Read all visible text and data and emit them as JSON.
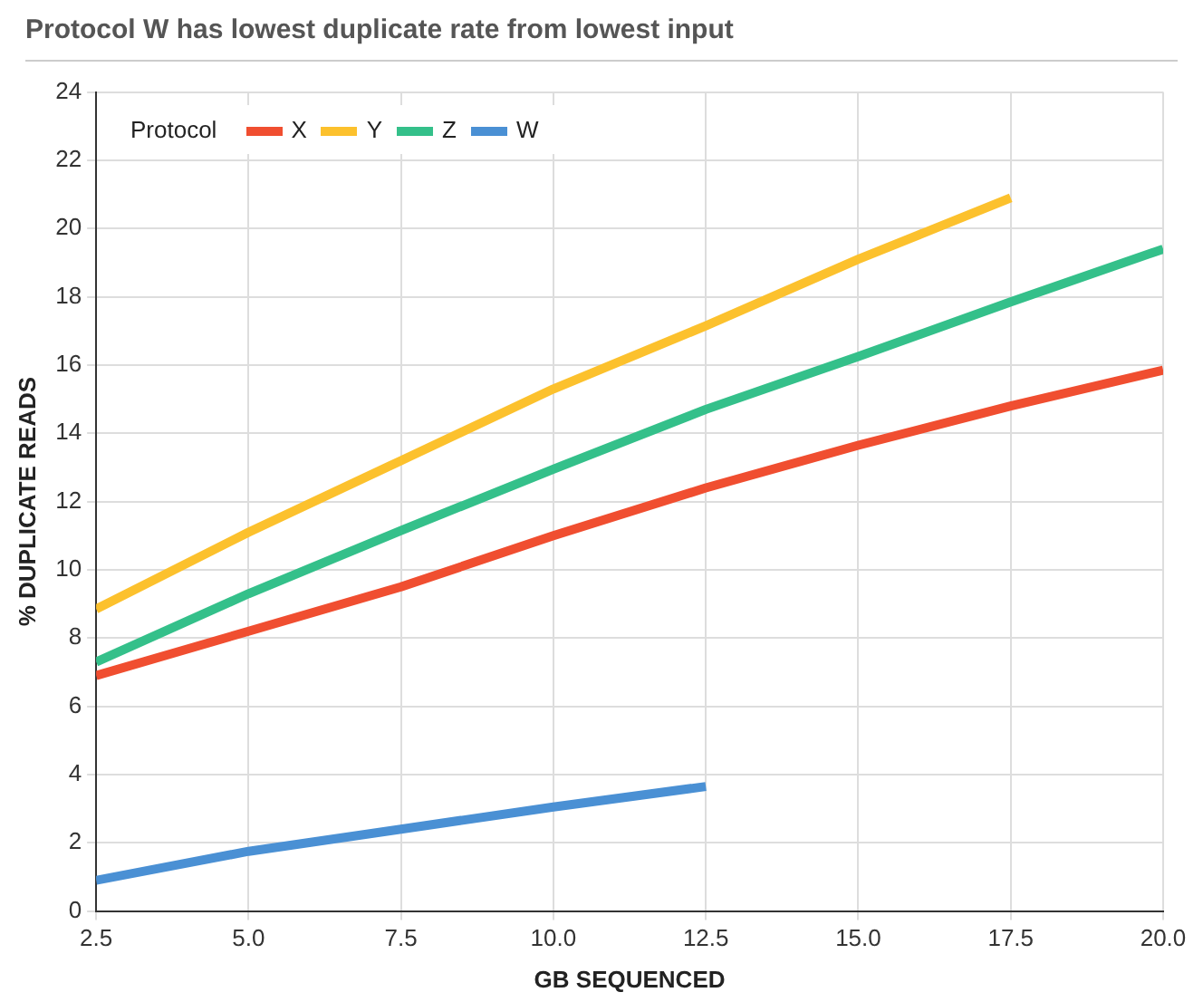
{
  "chart_data": {
    "type": "line",
    "title": "Protocol W has lowest duplicate rate from lowest input",
    "xlabel": "GB SEQUENCED",
    "ylabel": "% DUPLICATE READS",
    "legend_title": "Protocol",
    "x": [
      2.5,
      5,
      7.5,
      10,
      12.5,
      15,
      17.5,
      20
    ],
    "series": [
      {
        "name": "X",
        "color": "#f04e30",
        "values": [
          6.9,
          8.2,
          9.5,
          11.0,
          12.4,
          13.65,
          14.8,
          15.85
        ]
      },
      {
        "name": "Y",
        "color": "#fcc12d",
        "values": [
          8.85,
          11.1,
          13.2,
          15.3,
          17.15,
          19.1,
          20.9,
          null
        ]
      },
      {
        "name": "Z",
        "color": "#34c08a",
        "values": [
          7.3,
          9.3,
          11.15,
          12.95,
          14.7,
          16.25,
          17.85,
          19.4
        ]
      },
      {
        "name": "W",
        "color": "#4a90d4",
        "values": [
          0.9,
          1.75,
          2.4,
          3.05,
          3.65,
          null,
          null,
          null
        ]
      }
    ],
    "xlim": [
      2.5,
      20
    ],
    "xticks": [
      2.5,
      {
        "value": 5,
        "label": "5.0"
      },
      7.5,
      {
        "value": 10,
        "label": "10.0"
      },
      12.5,
      {
        "value": 15,
        "label": "15.0"
      },
      17.5,
      {
        "value": 20,
        "label": "20.0"
      }
    ],
    "ylim": [
      0,
      24
    ],
    "yticks": [
      0,
      2,
      4,
      6,
      8,
      10,
      12,
      14,
      16,
      18,
      20,
      22,
      24
    ],
    "grid": true,
    "legend": "top left",
    "marker": "none",
    "line_style": "solid"
  }
}
